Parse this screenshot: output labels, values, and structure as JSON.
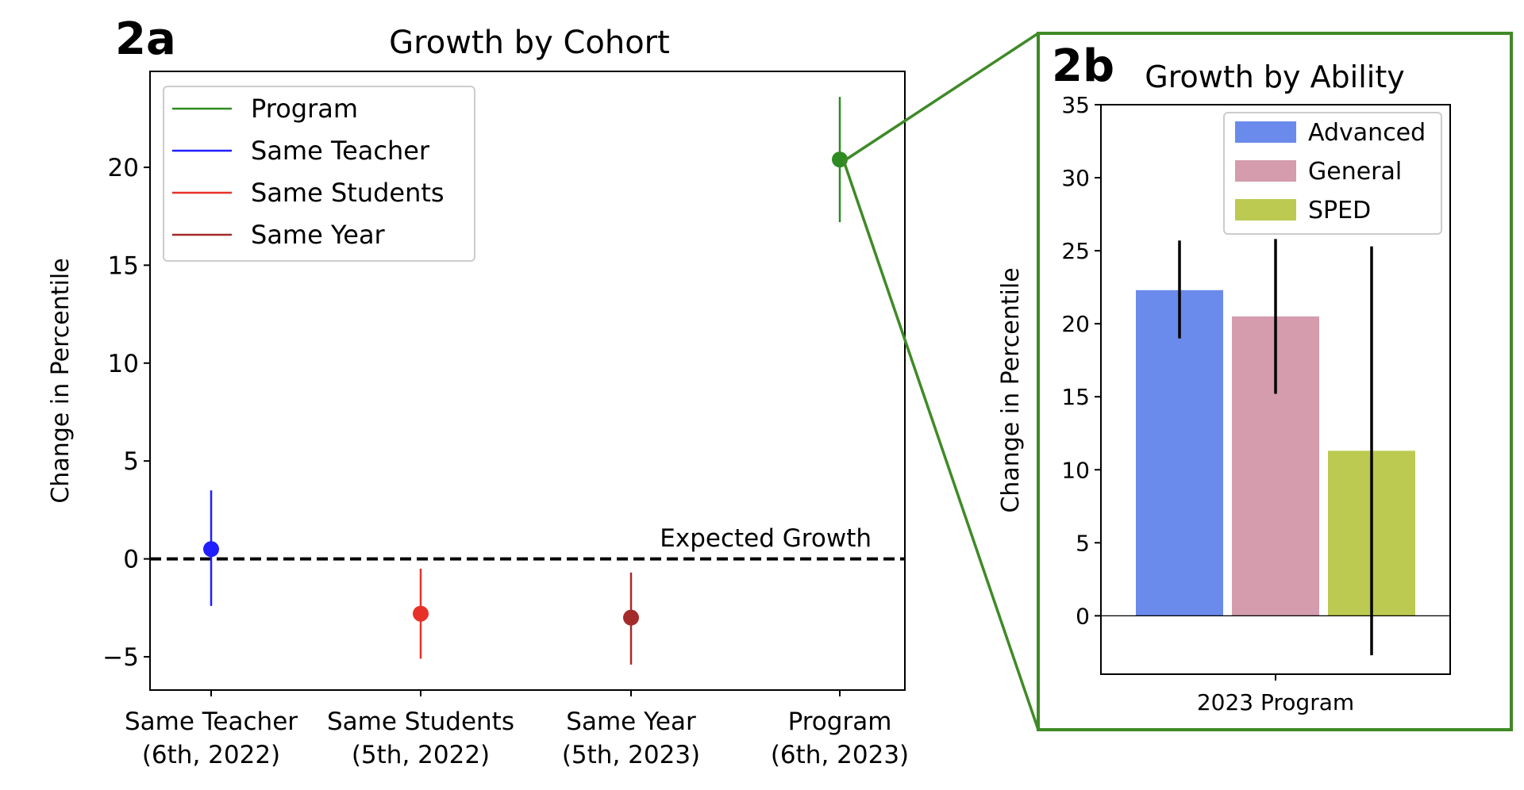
{
  "panel_labels": {
    "a": "2a",
    "b": "2b"
  },
  "chart_data": [
    {
      "type": "scatter",
      "panel": "2a",
      "title": "Growth by Cohort",
      "xlabel": "",
      "ylabel": "Change in Percentile",
      "ylim": [
        -6.7,
        24.9
      ],
      "yticks": [
        -5,
        0,
        5,
        10,
        15,
        20
      ],
      "categories": [
        "Same Teacher\n(6th, 2022)",
        "Same Students\n(5th, 2022)",
        "Same Year\n(5th, 2023)",
        "Program\n(6th, 2023)"
      ],
      "series": [
        {
          "name": "Same Teacher",
          "color": "#1f1fff",
          "values": [
            0.5
          ],
          "ci": [
            [
              -2.4,
              3.5
            ]
          ],
          "index": 0
        },
        {
          "name": "Same Students",
          "color": "#e8302a",
          "values": [
            -2.8
          ],
          "ci": [
            [
              -5.1,
              -0.5
            ]
          ],
          "index": 1
        },
        {
          "name": "Same Year",
          "color": "#a52a2a",
          "values": [
            -3.0
          ],
          "ci": [
            [
              -5.4,
              -0.7
            ]
          ],
          "index": 2
        },
        {
          "name": "Program",
          "color": "#2e8b22",
          "values": [
            20.4
          ],
          "ci": [
            [
              17.2,
              23.6
            ]
          ],
          "index": 3
        }
      ],
      "legend_order": [
        "Program",
        "Same Teacher",
        "Same Students",
        "Same Year"
      ],
      "reference_line": {
        "y": 0,
        "style": "dashed",
        "label": "Expected Growth"
      },
      "legend_position": "top-left",
      "grid": false
    },
    {
      "type": "bar",
      "panel": "2b",
      "title": "Growth by Ability",
      "xlabel": "",
      "ylabel": "Change in Percentile",
      "ylim": [
        -4,
        35
      ],
      "yticks": [
        0,
        5,
        10,
        15,
        20,
        25,
        30,
        35
      ],
      "categories": [
        "2023 Program"
      ],
      "series": [
        {
          "name": "Advanced",
          "color": "#6a8beb",
          "values": [
            22.3
          ],
          "error": [
            [
              19.0,
              25.7
            ]
          ]
        },
        {
          "name": "General",
          "color": "#d49cad",
          "values": [
            20.5
          ],
          "error": [
            [
              15.2,
              25.8
            ]
          ]
        },
        {
          "name": "SPED",
          "color": "#bcca51",
          "values": [
            11.3
          ],
          "error": [
            [
              -2.7,
              25.3
            ]
          ]
        }
      ],
      "legend_position": "top-right",
      "grid": false
    }
  ],
  "colors": {
    "zoom_frame": "#3f8a27",
    "axis": "#000000",
    "errorbar_b": "#000000"
  }
}
